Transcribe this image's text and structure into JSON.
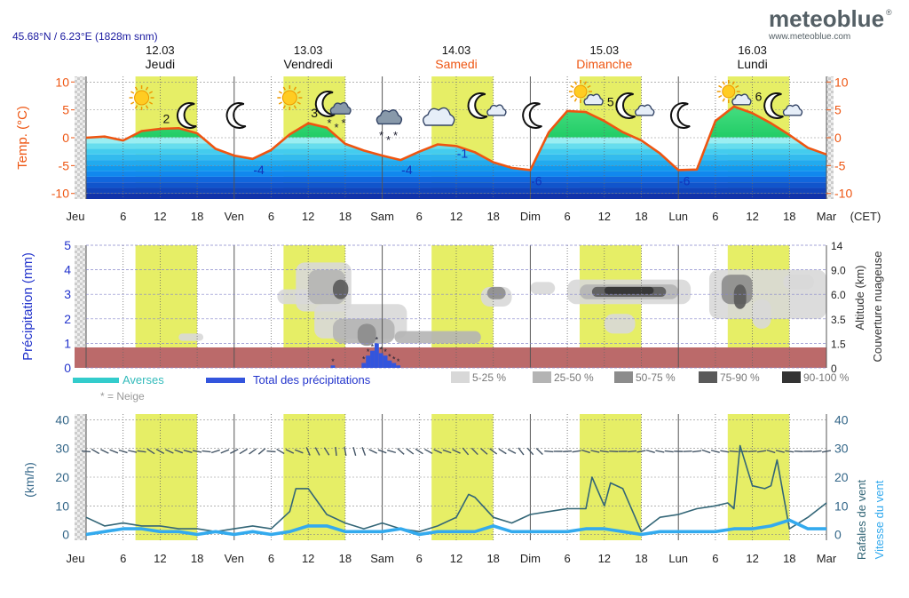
{
  "header": {
    "location": "45.68°N / 6.23°E (1828m snm)",
    "brand": "meteoblue",
    "brand_mark": "®",
    "brand_url": "www.meteoblue.com",
    "timezone": "(CET)"
  },
  "days": [
    {
      "date": "12.03",
      "name": "Jeudi",
      "weekend": false
    },
    {
      "date": "13.03",
      "name": "Vendredi",
      "weekend": false
    },
    {
      "date": "14.03",
      "name": "Samedi",
      "weekend": true
    },
    {
      "date": "15.03",
      "name": "Dimanche",
      "weekend": true
    },
    {
      "date": "16.03",
      "name": "Lundi",
      "weekend": false
    }
  ],
  "x_ticks": [
    "Jeu",
    "6",
    "12",
    "18",
    "Ven",
    "6",
    "12",
    "18",
    "Sam",
    "6",
    "12",
    "18",
    "Dim",
    "6",
    "12",
    "18",
    "Lun",
    "6",
    "12",
    "18",
    "Mar"
  ],
  "colors": {
    "temperature_line": "#ee5511",
    "daylight": "#e6ee66",
    "rain_blue": "#3355dd",
    "showers_cyan": "#33cccc",
    "wind_speed": "#33aaee",
    "wind_gust": "#336677",
    "ground": "#bb6a6a",
    "axis_left_text": "#ee5511",
    "precip_title": "#2233cc"
  },
  "chart_data": [
    {
      "type": "line",
      "title": "",
      "ylabel": "Temp. (°C)",
      "ylim": [
        -11,
        11
      ],
      "yticks": [
        -10,
        -5,
        0,
        5,
        10
      ],
      "x_unit": "hours from Thu 12.03 00:00",
      "series": [
        {
          "name": "Temp. (°C)",
          "x": [
            0,
            3,
            6,
            9,
            12,
            15,
            18,
            21,
            24,
            27,
            30,
            33,
            36,
            39,
            42,
            45,
            48,
            51,
            54,
            57,
            60,
            63,
            66,
            69,
            72,
            75,
            78,
            81,
            84,
            87,
            90,
            93,
            96,
            99,
            102,
            105,
            108,
            111,
            114,
            117,
            120
          ],
          "values": [
            0,
            0.2,
            -0.5,
            1.2,
            1.6,
            1.7,
            0.8,
            -2,
            -3.2,
            -3.8,
            -2.2,
            0.6,
            2.6,
            1.8,
            -1.1,
            -2.3,
            -3.2,
            -4,
            -2.5,
            -1.2,
            -1.5,
            -2.6,
            -4.4,
            -5.4,
            -5.8,
            1,
            4.8,
            4.6,
            3,
            1,
            -0.5,
            -2.8,
            -5.8,
            -5.7,
            3,
            5.6,
            4.4,
            2.6,
            0.5,
            -1.8,
            -3
          ]
        }
      ],
      "annotations": [
        {
          "x": 13,
          "value": 2,
          "label": "2"
        },
        {
          "x": 28,
          "value": -4,
          "label": "-4"
        },
        {
          "x": 37,
          "value": 3,
          "label": "3"
        },
        {
          "x": 52,
          "value": -4,
          "label": "-4"
        },
        {
          "x": 61,
          "value": -1,
          "label": "-1"
        },
        {
          "x": 73,
          "value": -6,
          "label": "-6"
        },
        {
          "x": 85,
          "value": 5,
          "label": "5"
        },
        {
          "x": 97,
          "value": -6,
          "label": "-6"
        },
        {
          "x": 109,
          "value": 6,
          "label": "6"
        }
      ],
      "icons": [
        {
          "x": 9,
          "name": "sun-icon"
        },
        {
          "x": 17,
          "name": "moon-icon"
        },
        {
          "x": 25,
          "name": "moon-icon"
        },
        {
          "x": 33,
          "name": "sun-icon"
        },
        {
          "x": 40,
          "name": "moon-snow-cloud-icon"
        },
        {
          "x": 49,
          "name": "snow-cloud-icon"
        },
        {
          "x": 57,
          "name": "cloud-icon"
        },
        {
          "x": 65,
          "name": "moon-cloud-icon"
        },
        {
          "x": 73,
          "name": "moon-icon"
        },
        {
          "x": 81,
          "name": "sun-cloud-icon"
        },
        {
          "x": 89,
          "name": "moon-cloud-icon"
        },
        {
          "x": 97,
          "name": "moon-icon"
        },
        {
          "x": 105,
          "name": "sun-cloud-icon"
        },
        {
          "x": 113,
          "name": "moon-cloud-icon"
        }
      ]
    },
    {
      "type": "bar",
      "title": "",
      "ylabel": "Précipitation (mm)",
      "ylim": [
        0,
        5
      ],
      "yticks": [
        0,
        1,
        2,
        3,
        4,
        5
      ],
      "right_ylabel": "Couverture nuageuse",
      "right_ylabel2": "Altitude (km)",
      "right_ticks": [
        "0",
        "1.5",
        "3.5",
        "6.0",
        "9.0",
        "14"
      ],
      "x_unit": "hours from Thu 12.03 00:00",
      "series": [
        {
          "name": "Total des précipitations",
          "x": [
            40,
            45,
            45.7,
            46.4,
            47.1,
            47.8,
            48.5,
            49.2,
            49.9,
            50.6
          ],
          "values": [
            0.1,
            0.2,
            0.5,
            0.7,
            1.0,
            0.6,
            0.5,
            0.3,
            0.2,
            0.1
          ]
        }
      ],
      "snow_markers_x": [
        40,
        45,
        45.7,
        46.4,
        47.1,
        47.8,
        48.5,
        49.2,
        49.9,
        50.6
      ],
      "legend": {
        "showers": "Averses",
        "total": "Total des précipitations",
        "snow_note": "* = Neige",
        "cloud_cover": [
          "5-25 %",
          "25-50 %",
          "50-75 %",
          "75-90 %",
          "90-100 %"
        ]
      }
    },
    {
      "type": "line",
      "title": "",
      "ylabel": "(km/h)",
      "ylim": [
        -2,
        42
      ],
      "yticks": [
        0,
        10,
        20,
        30,
        40
      ],
      "right_ylabel": "Rafales de vent",
      "right_ylabel2": "Vitesse du vent",
      "x_unit": "hours from Thu 12.03 00:00",
      "series": [
        {
          "name": "Rafales de vent",
          "x": [
            0,
            3,
            6,
            9,
            12,
            15,
            18,
            21,
            24,
            27,
            30,
            33,
            34,
            36,
            39,
            42,
            45,
            48,
            51,
            54,
            57,
            60,
            62,
            63,
            66,
            69,
            72,
            75,
            78,
            81,
            82,
            84,
            85,
            87,
            90,
            93,
            96,
            99,
            102,
            104,
            105,
            106,
            108,
            110,
            111,
            112,
            114,
            117,
            120
          ],
          "values": [
            6,
            3,
            4,
            3,
            3,
            2,
            2,
            1,
            2,
            3,
            2,
            8,
            16,
            16,
            7,
            4,
            2,
            4,
            2,
            1,
            3,
            6,
            14,
            13,
            6,
            4,
            7,
            8,
            9,
            9,
            20,
            10,
            18,
            16,
            1,
            6,
            7,
            9,
            10,
            11,
            9,
            31,
            17,
            16,
            17,
            26,
            2,
            6,
            11
          ]
        },
        {
          "name": "Vitesse du vent",
          "x": [
            0,
            3,
            6,
            9,
            12,
            15,
            18,
            21,
            24,
            27,
            30,
            33,
            36,
            39,
            42,
            45,
            48,
            51,
            54,
            57,
            60,
            63,
            66,
            69,
            72,
            75,
            78,
            81,
            84,
            87,
            90,
            93,
            96,
            99,
            102,
            105,
            108,
            111,
            114,
            117,
            120
          ],
          "values": [
            0,
            1,
            2,
            2,
            1,
            1,
            0,
            1,
            0,
            1,
            0,
            1,
            3,
            3,
            1,
            1,
            1,
            2,
            0,
            1,
            1,
            1,
            3,
            1,
            1,
            1,
            1,
            2,
            2,
            1,
            0,
            1,
            1,
            1,
            1,
            2,
            2,
            3,
            5,
            2,
            2
          ]
        }
      ],
      "arrow_row_value": 29,
      "legend": {
        "gust_label": "Rafales de vent",
        "speed_label": "Vitesse du vent"
      }
    }
  ]
}
